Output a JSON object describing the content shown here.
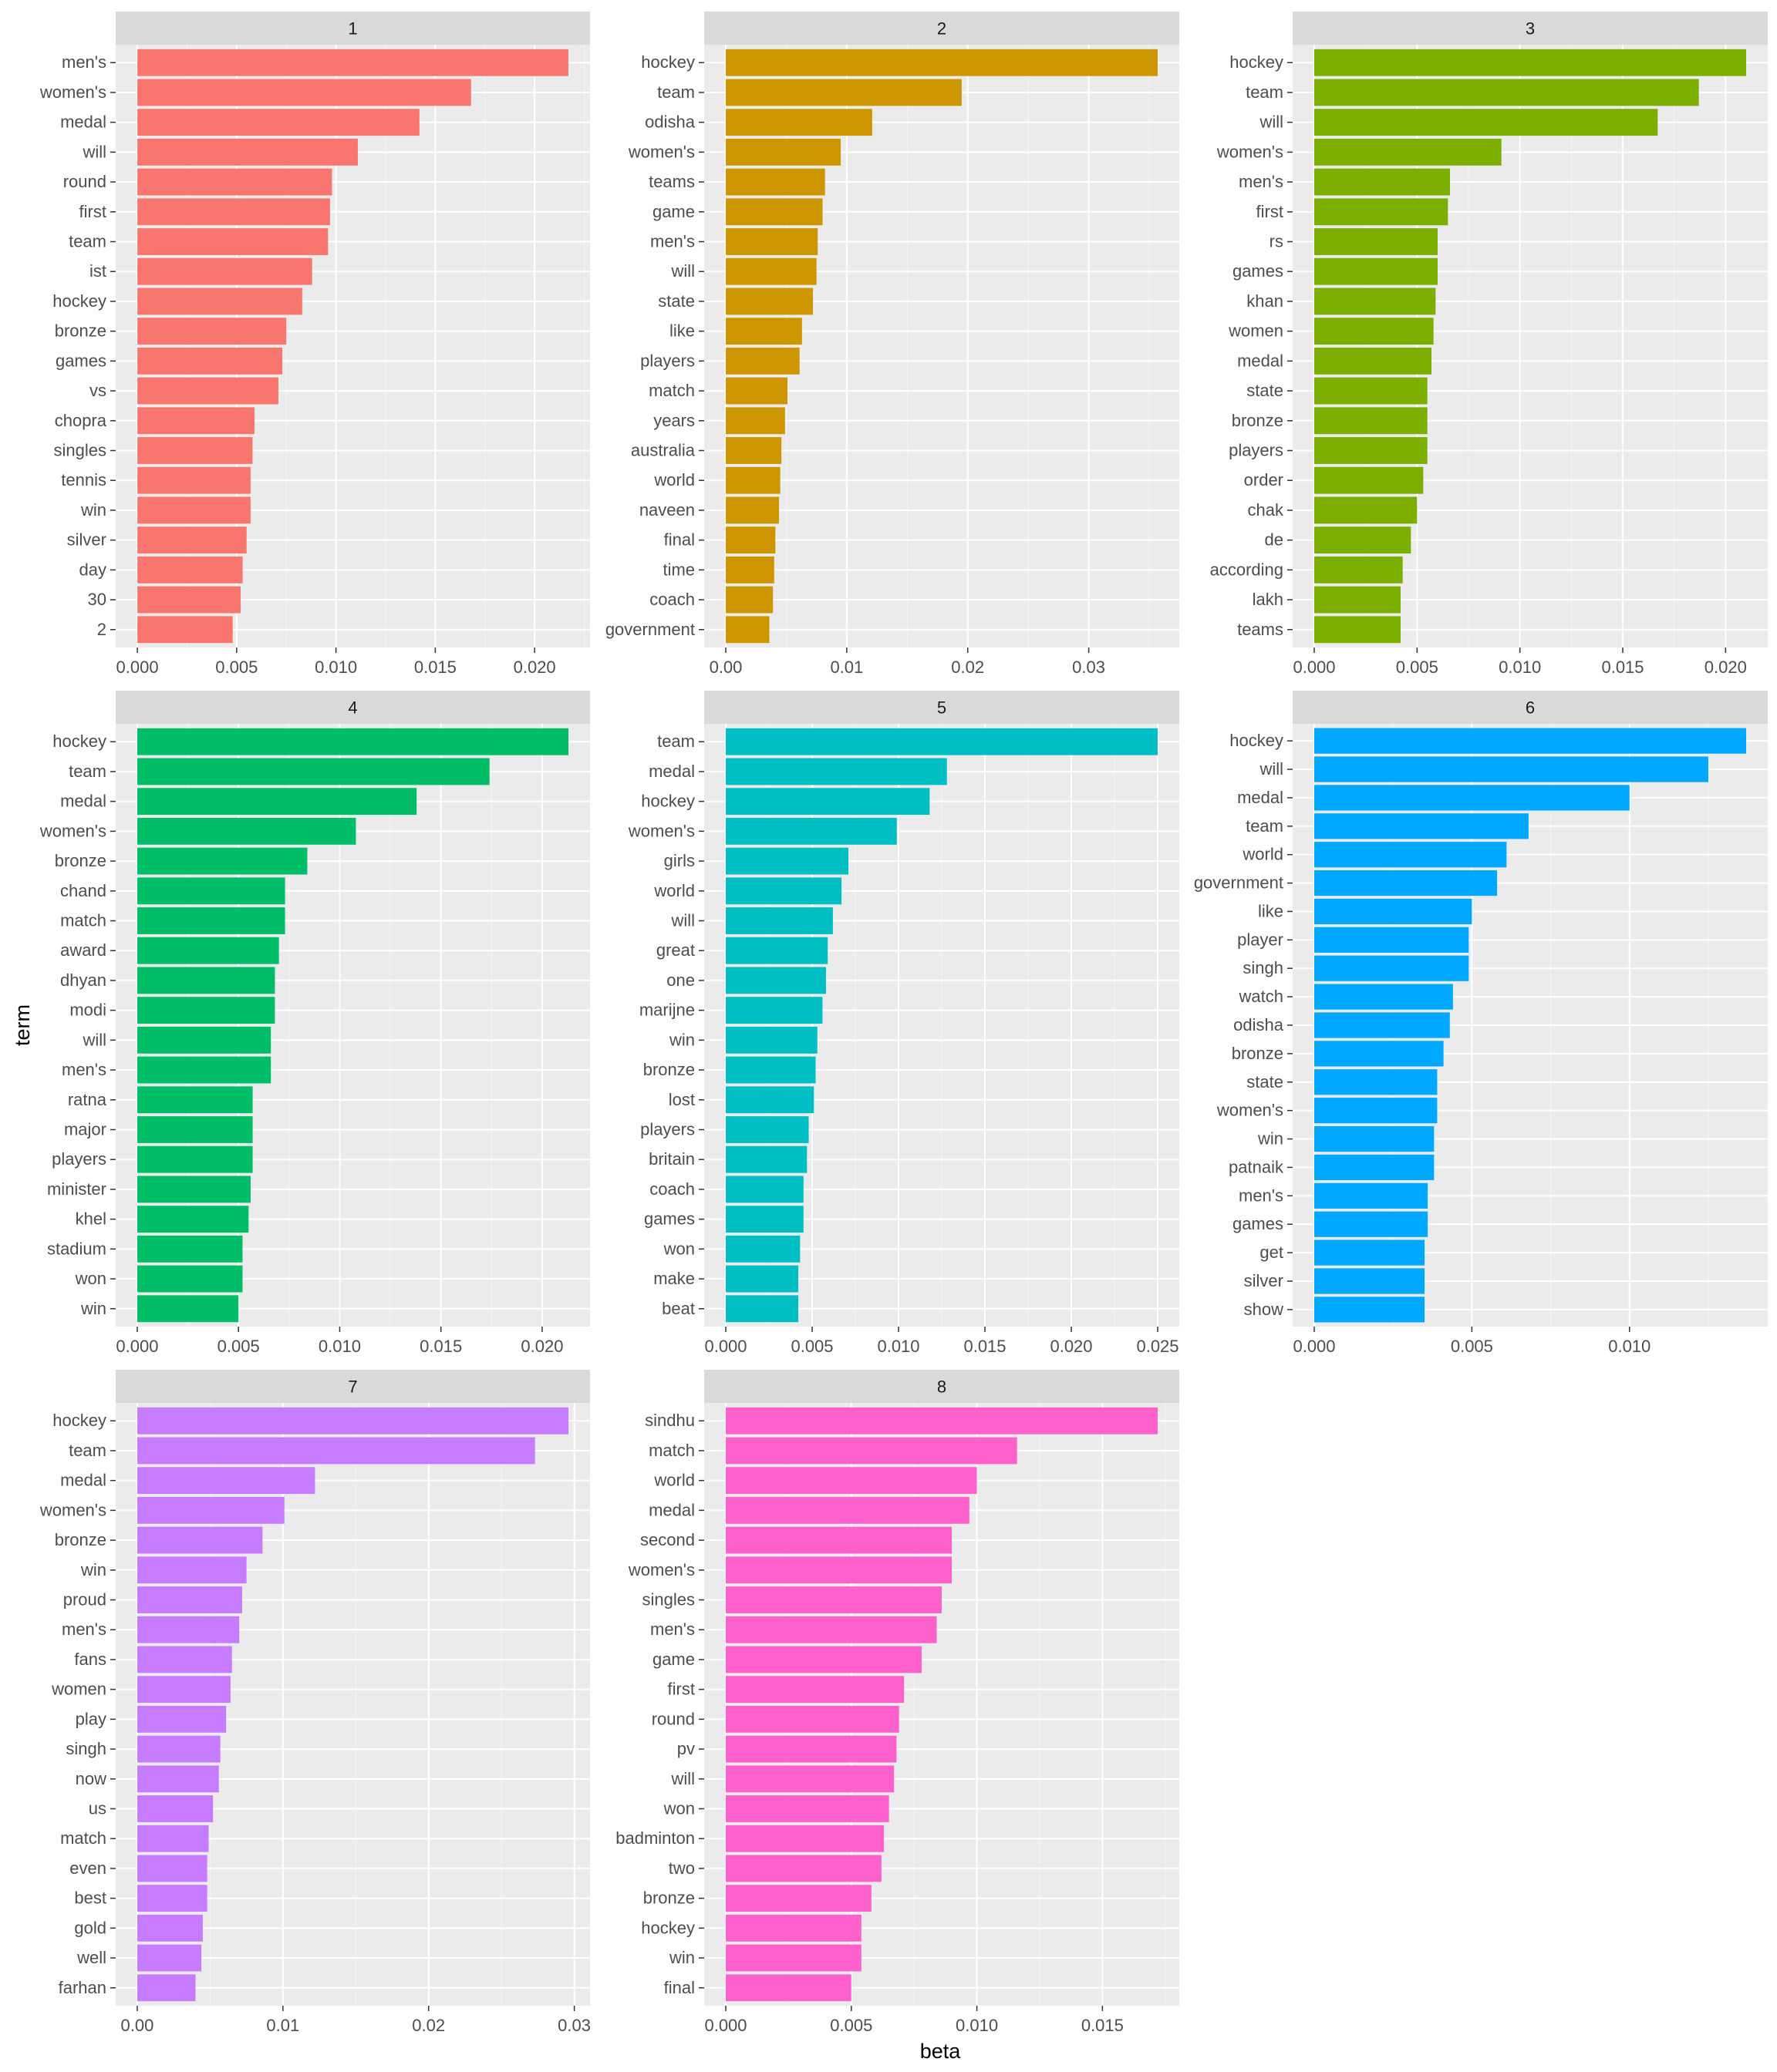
{
  "colors": {
    "panel_bg": "#EBEBEB",
    "grid_major": "#FFFFFF",
    "strip_bg": "#D9D9D9",
    "tick": "#333333",
    "facets": [
      "#F8766D",
      "#CD9600",
      "#7CAE00",
      "#00BE67",
      "#00BFC4",
      "#00A9FF",
      "#C77CFF",
      "#FF61CC"
    ]
  },
  "chart_data": {
    "type": "bar",
    "orientation": "horizontal",
    "xlabel": "beta",
    "ylabel": "term",
    "grid": true,
    "legend": "none",
    "facets": [
      {
        "label": "1",
        "terms": [
          "men's",
          "women's",
          "medal",
          "will",
          "round",
          "first",
          "team",
          "ist",
          "hockey",
          "bronze",
          "games",
          "vs",
          "chopra",
          "singles",
          "tennis",
          "win",
          "silver",
          "day",
          "30",
          "2"
        ],
        "values": [
          0.0217,
          0.0168,
          0.0142,
          0.0111,
          0.0098,
          0.0097,
          0.0096,
          0.0088,
          0.0083,
          0.0075,
          0.0073,
          0.0071,
          0.0059,
          0.0058,
          0.0057,
          0.0057,
          0.0055,
          0.0053,
          0.0052,
          0.0048
        ],
        "xlim": [
          -0.00109,
          0.02279
        ],
        "ticks": [
          0,
          0.005,
          0.01,
          0.015,
          0.02
        ],
        "tick_labels": [
          "0.000",
          "0.005",
          "0.010",
          "0.015",
          "0.020"
        ]
      },
      {
        "label": "2",
        "terms": [
          "hockey",
          "team",
          "odisha",
          "women's",
          "teams",
          "game",
          "men's",
          "will",
          "state",
          "like",
          "players",
          "match",
          "years",
          "australia",
          "world",
          "naveen",
          "final",
          "time",
          "coach",
          "government"
        ],
        "values": [
          0.0357,
          0.0195,
          0.0121,
          0.0095,
          0.0082,
          0.008,
          0.0076,
          0.0075,
          0.0072,
          0.0063,
          0.0061,
          0.0051,
          0.0049,
          0.0046,
          0.0045,
          0.0044,
          0.0041,
          0.004,
          0.0039,
          0.0036
        ],
        "xlim": [
          -0.001785,
          0.037485
        ],
        "ticks": [
          0,
          0.01,
          0.02,
          0.03
        ],
        "tick_labels": [
          "0.00",
          "0.01",
          "0.02",
          "0.03"
        ]
      },
      {
        "label": "3",
        "terms": [
          "hockey",
          "team",
          "will",
          "women's",
          "men's",
          "first",
          "rs",
          "games",
          "khan",
          "women",
          "medal",
          "state",
          "bronze",
          "players",
          "order",
          "chak",
          "de",
          "according",
          "lakh",
          "teams"
        ],
        "values": [
          0.021,
          0.0187,
          0.0167,
          0.0091,
          0.0066,
          0.0065,
          0.006,
          0.006,
          0.0059,
          0.0058,
          0.0057,
          0.0055,
          0.0055,
          0.0055,
          0.0053,
          0.005,
          0.0047,
          0.0043,
          0.0042,
          0.0042
        ],
        "xlim": [
          -0.00105,
          0.02205
        ],
        "ticks": [
          0,
          0.005,
          0.01,
          0.015,
          0.02
        ],
        "tick_labels": [
          "0.000",
          "0.005",
          "0.010",
          "0.015",
          "0.020"
        ]
      },
      {
        "label": "4",
        "terms": [
          "hockey",
          "team",
          "medal",
          "women's",
          "bronze",
          "chand",
          "match",
          "award",
          "dhyan",
          "modi",
          "will",
          "men's",
          "ratna",
          "major",
          "players",
          "minister",
          "khel",
          "stadium",
          "won",
          "win"
        ],
        "values": [
          0.0213,
          0.0174,
          0.0138,
          0.0108,
          0.0084,
          0.0073,
          0.0073,
          0.007,
          0.0068,
          0.0068,
          0.0066,
          0.0066,
          0.0057,
          0.0057,
          0.0057,
          0.0056,
          0.0055,
          0.0052,
          0.0052,
          0.005
        ],
        "xlim": [
          -0.001065,
          0.022365
        ],
        "ticks": [
          0,
          0.005,
          0.01,
          0.015,
          0.02
        ],
        "tick_labels": [
          "0.000",
          "0.005",
          "0.010",
          "0.015",
          "0.020"
        ]
      },
      {
        "label": "5",
        "terms": [
          "team",
          "medal",
          "hockey",
          "women's",
          "girls",
          "world",
          "will",
          "great",
          "one",
          "marijne",
          "win",
          "bronze",
          "lost",
          "players",
          "britain",
          "coach",
          "games",
          "won",
          "make",
          "beat"
        ],
        "values": [
          0.025,
          0.0128,
          0.0118,
          0.0099,
          0.0071,
          0.0067,
          0.0062,
          0.0059,
          0.0058,
          0.0056,
          0.0053,
          0.0052,
          0.0051,
          0.0048,
          0.0047,
          0.0045,
          0.0045,
          0.0043,
          0.0042,
          0.0042
        ],
        "xlim": [
          -0.00125,
          0.02625
        ],
        "ticks": [
          0,
          0.005,
          0.01,
          0.015,
          0.02,
          0.025
        ],
        "tick_labels": [
          "0.000",
          "0.005",
          "0.010",
          "0.015",
          "0.020",
          "0.025"
        ]
      },
      {
        "label": "6",
        "terms": [
          "hockey",
          "will",
          "medal",
          "team",
          "world",
          "government",
          "like",
          "player",
          "singh",
          "watch",
          "odisha",
          "bronze",
          "state",
          "women's",
          "win",
          "patnaik",
          "men's",
          "games",
          "get",
          "silver",
          "show"
        ],
        "values": [
          0.0137,
          0.0125,
          0.01,
          0.0068,
          0.0061,
          0.0058,
          0.005,
          0.0049,
          0.0049,
          0.0044,
          0.0043,
          0.0041,
          0.0039,
          0.0039,
          0.0038,
          0.0038,
          0.0036,
          0.0036,
          0.0035,
          0.0035,
          0.0035
        ],
        "xlim": [
          -0.000685,
          0.014385
        ],
        "ticks": [
          0,
          0.005,
          0.01
        ],
        "tick_labels": [
          "0.000",
          "0.005",
          "0.010"
        ]
      },
      {
        "label": "7",
        "terms": [
          "hockey",
          "team",
          "medal",
          "women's",
          "bronze",
          "win",
          "proud",
          "men's",
          "fans",
          "women",
          "play",
          "singh",
          "now",
          "us",
          "match",
          "even",
          "best",
          "gold",
          "well",
          "farhan"
        ],
        "values": [
          0.0296,
          0.0273,
          0.0122,
          0.0101,
          0.0086,
          0.0075,
          0.0072,
          0.007,
          0.0065,
          0.0064,
          0.0061,
          0.0057,
          0.0056,
          0.0052,
          0.0049,
          0.0048,
          0.0048,
          0.0045,
          0.0044,
          0.004
        ],
        "xlim": [
          -0.00148,
          0.03108
        ],
        "ticks": [
          0,
          0.01,
          0.02,
          0.03
        ],
        "tick_labels": [
          "0.00",
          "0.01",
          "0.02",
          "0.03"
        ]
      },
      {
        "label": "8",
        "terms": [
          "sindhu",
          "match",
          "world",
          "medal",
          "second",
          "women's",
          "singles",
          "men's",
          "game",
          "first",
          "round",
          "pv",
          "will",
          "won",
          "badminton",
          "two",
          "bronze",
          "hockey",
          "win",
          "final"
        ],
        "values": [
          0.0172,
          0.0116,
          0.01,
          0.0097,
          0.009,
          0.009,
          0.0086,
          0.0084,
          0.0078,
          0.0071,
          0.0069,
          0.0068,
          0.0067,
          0.0065,
          0.0063,
          0.0062,
          0.0058,
          0.0054,
          0.0054,
          0.005
        ],
        "xlim": [
          -0.00086,
          0.01806
        ],
        "ticks": [
          0,
          0.005,
          0.01,
          0.015
        ],
        "tick_labels": [
          "0.000",
          "0.005",
          "0.010",
          "0.015"
        ]
      }
    ]
  }
}
